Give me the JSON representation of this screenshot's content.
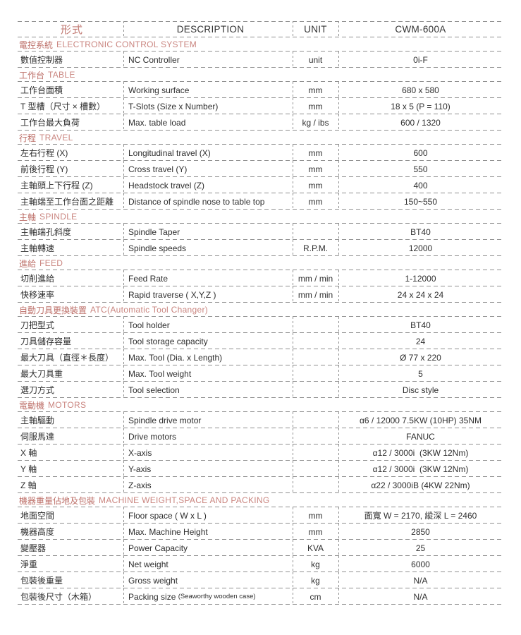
{
  "colors": {
    "accent_zh": "#bd6f68",
    "accent_en": "#ca8680",
    "line": "#909090",
    "text": "#2e2e2e"
  },
  "table": {
    "header": {
      "col1": "形式",
      "col2": "DESCRIPTION",
      "col3": "UNIT",
      "col4": "CWM-600A"
    },
    "sections": [
      {
        "title_zh": "電控系統",
        "title_en": "ELECTRONIC CONTROL SYSTEM",
        "rows": [
          {
            "label": "數值控制器",
            "description": "NC Controller",
            "unit": "unit",
            "value": "0i-F"
          }
        ]
      },
      {
        "title_zh": "工作台",
        "title_en": "TABLE",
        "rows": [
          {
            "label": "工作台面積",
            "description": "Working surface",
            "unit": "mm",
            "value": "680 x 580"
          },
          {
            "label": "T 型槽（尺寸 × 槽數）",
            "description": "T-Slots (Size x Number)",
            "unit": "mm",
            "value": "18 x 5 (P = 110)"
          },
          {
            "label": "工作台最大負荷",
            "description": "Max. table load",
            "unit": "kg / ibs",
            "value": "600 / 1320"
          }
        ]
      },
      {
        "title_zh": "行程",
        "title_en": "TRAVEL",
        "rows": [
          {
            "label": "左右行程 (X)",
            "description": "Longitudinal travel (X)",
            "unit": "mm",
            "value": "600"
          },
          {
            "label": "前後行程 (Y)",
            "description": "Cross travel (Y)",
            "unit": "mm",
            "value": "550"
          },
          {
            "label": "主軸頭上下行程 (Z)",
            "description": "Headstock travel (Z)",
            "unit": "mm",
            "value": "400"
          },
          {
            "label": "主軸端至工作台面之距離",
            "description": "Distance of spindle nose to table top",
            "unit": "mm",
            "value": "150~550"
          }
        ]
      },
      {
        "title_zh": "主軸",
        "title_en": "SPINDLE",
        "rows": [
          {
            "label": "主軸端孔斜度",
            "description": "Spindle Taper",
            "unit": "",
            "value": "BT40"
          },
          {
            "label": "主軸轉速",
            "description": "Spindle speeds",
            "unit": "R.P.M.",
            "value": "12000"
          }
        ]
      },
      {
        "title_zh": "進給",
        "title_en": "FEED",
        "rows": [
          {
            "label": "切削進給",
            "description": "Feed Rate",
            "unit": "mm / min",
            "value": "1-12000"
          },
          {
            "label": "快移速率",
            "description": "Rapid traverse ( X,Y,Z )",
            "unit": "mm / min",
            "value": "24 x 24 x 24"
          }
        ]
      },
      {
        "title_zh": "自動刀具更換裝置",
        "title_en": "ATC(Automatic Tool Changer)",
        "rows": [
          {
            "label": "刀把型式",
            "description": "Tool holder",
            "unit": "",
            "value": "BT40"
          },
          {
            "label": "刀具儲存容量",
            "description": "Tool storage capacity",
            "unit": "",
            "value": "24"
          },
          {
            "label": "最大刀具（直徑＊長度）",
            "description": "Max. Tool (Dia. x Length)",
            "unit": "",
            "value": "Ø 77 x 220"
          },
          {
            "label": "最大刀具重",
            "description": "Max. Tool weight",
            "unit": "",
            "value": "5"
          },
          {
            "label": "選刀方式",
            "description": "Tool selection",
            "unit": "",
            "value": "Disc style"
          }
        ]
      },
      {
        "title_zh": "電動機",
        "title_en": "MOTORS",
        "rows": [
          {
            "label": "主軸驅動",
            "description": "Spindle drive motor",
            "unit": "",
            "value": "α6 / 12000 7.5KW (10HP) 35NM"
          },
          {
            "label": "伺服馬達",
            "description": "Drive motors",
            "unit": "",
            "value": "FANUC"
          },
          {
            "label": "X 軸",
            "description": "X-axis",
            "unit": "",
            "value": "α12 / 3000i  (3KW 12Nm)"
          },
          {
            "label": "Y 軸",
            "description": "Y-axis",
            "unit": "",
            "value": "α12 / 3000i  (3KW 12Nm)"
          },
          {
            "label": "Z 軸",
            "description": "Z-axis",
            "unit": "",
            "value": "α22 / 3000iB (4KW 22Nm)"
          }
        ]
      },
      {
        "title_zh": "機器重量佔地及包裝",
        "title_en": "MACHINE WEIGHT,SPACE AND PACKING",
        "rows": [
          {
            "label": "地面空間",
            "description": "Floor space ( W x L )",
            "unit": "mm",
            "value": "面寬 W = 2170, 縱深 L = 2460"
          },
          {
            "label": "機器高度",
            "description": "Max. Machine Height",
            "unit": "mm",
            "value": "2850"
          },
          {
            "label": "變壓器",
            "description": "Power Capacity",
            "unit": "KVA",
            "value": "25"
          },
          {
            "label": "淨重",
            "description": "Net weight",
            "unit": "kg",
            "value": "6000"
          },
          {
            "label": "包裝後重量",
            "description": "Gross weight",
            "unit": "kg",
            "value": "N/A"
          },
          {
            "label": "包裝後尺寸（木箱）",
            "description": "Packing size ",
            "description_note": "(Seaworthy wooden case)",
            "unit": "cm",
            "value": "N/A"
          }
        ]
      }
    ]
  }
}
